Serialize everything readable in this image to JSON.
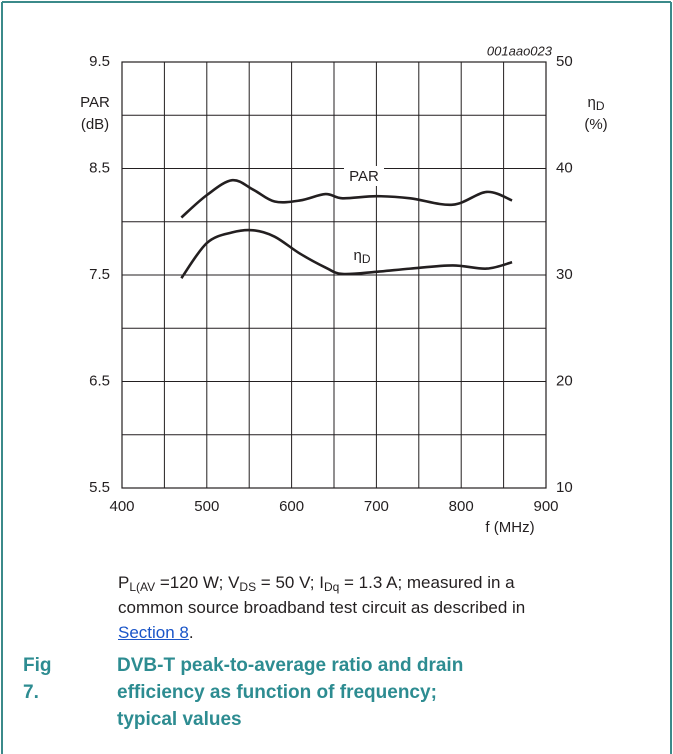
{
  "chart_data": {
    "type": "line",
    "code": "001aao023",
    "y_label": [
      "PAR",
      "(dB)"
    ],
    "y2_label": {
      "symbol": "η",
      "sub": "D",
      "unit": "(%)"
    },
    "x_label": "f (MHz)",
    "x": [
      470,
      500,
      530,
      555,
      580,
      610,
      640,
      660,
      700,
      740,
      790,
      830,
      860
    ],
    "series": [
      {
        "name": "PAR",
        "color": "#231f20",
        "axis": "y",
        "values": [
          8.04,
          8.25,
          8.39,
          8.3,
          8.19,
          8.2,
          8.26,
          8.22,
          8.24,
          8.22,
          8.16,
          8.28,
          8.2
        ]
      },
      {
        "name": "η",
        "name_sub": "D",
        "color": "#231f20",
        "axis": "y2",
        "values": [
          29.7,
          33.0,
          34.0,
          34.2,
          33.6,
          32.0,
          30.7,
          30.1,
          30.3,
          30.6,
          30.9,
          30.6,
          31.2
        ]
      }
    ],
    "xlim": [
      400,
      900
    ],
    "xticks": [
      400,
      500,
      600,
      700,
      800,
      900
    ],
    "xminor": [
      450,
      550,
      650,
      750,
      850
    ],
    "ylim": [
      5.5,
      9.5
    ],
    "yticks": [
      5.5,
      6.5,
      7.5,
      8.5,
      9.5
    ],
    "yminor": [
      6,
      7,
      8,
      9
    ],
    "y2lim": [
      10,
      50
    ],
    "y2ticks": [
      10,
      20,
      30,
      40,
      50
    ],
    "grid": true
  },
  "note_lines": [
    [
      {
        "t": "P"
      },
      {
        "sub": "L(AV"
      },
      {
        "t": " =120 W; V"
      },
      {
        "sub": "DS"
      },
      {
        "t": " = 50 V; I"
      },
      {
        "sub": "Dq"
      },
      {
        "t": " = 1.3 A; measured in a"
      }
    ],
    [
      {
        "t": "common source broadband test circuit as described in"
      }
    ],
    [
      {
        "link": "Section 8"
      },
      {
        "t": "."
      }
    ]
  ],
  "figure": {
    "number": "Fig 7.",
    "title_lines": [
      "DVB-T peak-to-average ratio and drain",
      "efficiency as function of frequency;",
      "typical values"
    ]
  }
}
